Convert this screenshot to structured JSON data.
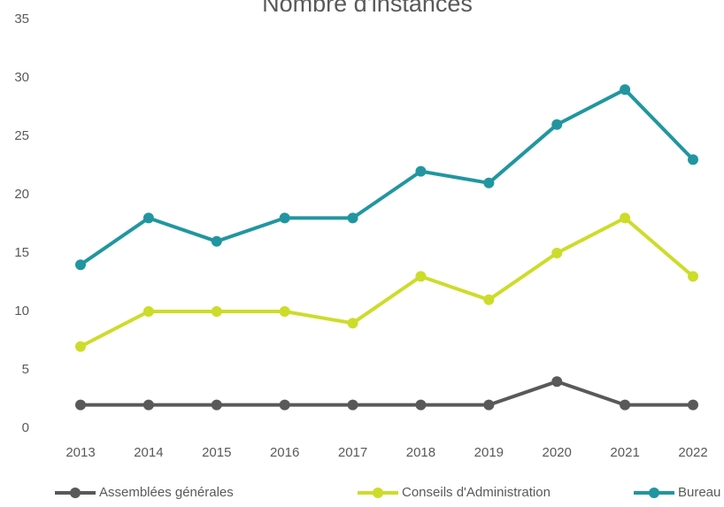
{
  "chart_data": {
    "type": "line",
    "title": "Nombre d'instances",
    "categories": [
      "2013",
      "2014",
      "2015",
      "2016",
      "2017",
      "2018",
      "2019",
      "2020",
      "2021",
      "2022"
    ],
    "series": [
      {
        "name": "Assemblées générales",
        "color": "#595959",
        "values": [
          2,
          2,
          2,
          2,
          2,
          2,
          2,
          4,
          2,
          2
        ]
      },
      {
        "name": "Conseils d'Administration",
        "color": "#cddc29",
        "values": [
          7,
          10,
          10,
          10,
          9,
          13,
          11,
          15,
          18,
          13
        ]
      },
      {
        "name": "Bureau",
        "color": "#2196a0",
        "values": [
          14,
          18,
          16,
          18,
          18,
          22,
          21,
          26,
          29,
          23
        ]
      }
    ],
    "ylim": [
      0,
      35
    ],
    "yticks": [
      0,
      5,
      10,
      15,
      20,
      25,
      30,
      35
    ],
    "grid": false,
    "legend": "bottom"
  }
}
